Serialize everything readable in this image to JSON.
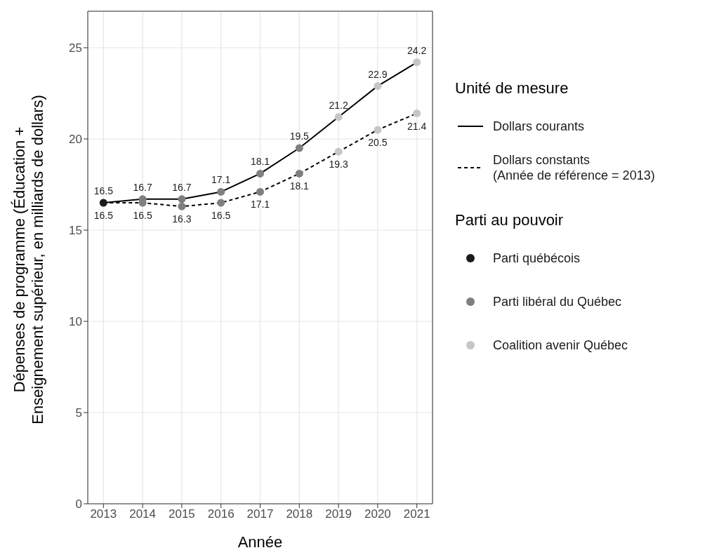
{
  "chart_data": {
    "type": "line",
    "xlabel": "Année",
    "ylabel": "Dépenses de programme (Éducation +\nEnseignement supérieur, en milliards de dollars)",
    "legend_title": "Unité de mesure",
    "annotations": [
      "Parti au pouvoir"
    ],
    "x": [
      2013,
      2014,
      2015,
      2016,
      2017,
      2018,
      2019,
      2020,
      2021
    ],
    "xlim": [
      2012.6,
      2021.4
    ],
    "xticks": [
      2013,
      2014,
      2015,
      2016,
      2017,
      2018,
      2019,
      2020,
      2021
    ],
    "ylim": [
      0,
      27
    ],
    "yticks": [
      0,
      5,
      10,
      15,
      20,
      25
    ],
    "grid": true,
    "legend": "right",
    "series": [
      {
        "name": "Dollars courants",
        "color": "#000000",
        "line_style": "solid",
        "marker": "none",
        "values": [
          16.5,
          16.7,
          16.7,
          17.1,
          18.1,
          19.5,
          21.2,
          22.9,
          24.2
        ],
        "value_labels": [
          "16.5",
          "16.7",
          "16.7",
          "17.1",
          "18.1",
          "19.5",
          "21.2",
          "22.9",
          "24.2"
        ]
      },
      {
        "name": "Dollars constants\n(Année de référence = 2013)",
        "color": "#000000",
        "line_style": "dashed",
        "marker": "none",
        "values": [
          16.5,
          16.5,
          16.3,
          16.5,
          17.1,
          18.1,
          19.3,
          20.5,
          21.4
        ],
        "value_labels": [
          "16.5",
          "16.5",
          "16.3",
          "16.5",
          "17.1",
          "18.1",
          "19.3",
          "20.5",
          "21.4"
        ]
      },
      {
        "name": "Parti québécois",
        "type": "scatter",
        "color": "#1a1a1a",
        "marker": "circle",
        "x": [
          2013
        ],
        "values": [
          16.5
        ]
      },
      {
        "name": "Parti libéral du Québec",
        "type": "scatter",
        "color": "#7f7f7f",
        "marker": "circle",
        "x": [
          2014,
          2014,
          2015,
          2015,
          2016,
          2016,
          2017,
          2017,
          2018,
          2018
        ],
        "values": [
          16.7,
          16.5,
          16.7,
          16.3,
          17.1,
          16.5,
          18.1,
          17.1,
          19.5,
          18.1
        ]
      },
      {
        "name": "Coalition avenir Québec",
        "type": "scatter",
        "color": "#c6c6c6",
        "marker": "circle",
        "x": [
          2019,
          2019,
          2020,
          2020,
          2021,
          2021
        ],
        "values": [
          21.2,
          19.3,
          22.9,
          20.5,
          24.2,
          21.4
        ]
      }
    ]
  }
}
